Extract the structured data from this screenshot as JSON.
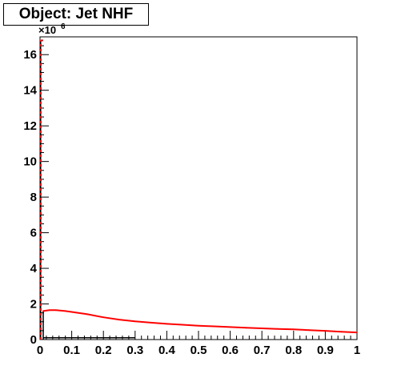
{
  "chart_data": {
    "type": "line",
    "title": "Object: Jet NHF",
    "y_multiplier": "×10",
    "y_exponent": "6",
    "xlim": [
      0,
      1
    ],
    "ylim": [
      0,
      17
    ],
    "x_ticks": [
      "0",
      "0.1",
      "0.2",
      "0.3",
      "0.4",
      "0.5",
      "0.6",
      "0.7",
      "0.8",
      "0.9",
      "1"
    ],
    "y_ticks": [
      "0",
      "2",
      "4",
      "6",
      "8",
      "10",
      "12",
      "14",
      "16"
    ],
    "grid": false,
    "legend": false,
    "series": [
      {
        "color": "#ff0000",
        "spike": {
          "x": 0.0,
          "y": 16.8
        },
        "x": [
          0.01,
          0.03,
          0.05,
          0.08,
          0.1,
          0.15,
          0.2,
          0.25,
          0.3,
          0.35,
          0.4,
          0.45,
          0.5,
          0.55,
          0.6,
          0.65,
          0.7,
          0.75,
          0.8,
          0.85,
          0.9,
          0.95,
          1.0
        ],
        "y": [
          1.6,
          1.65,
          1.65,
          1.6,
          1.55,
          1.42,
          1.25,
          1.12,
          1.02,
          0.95,
          0.88,
          0.83,
          0.78,
          0.74,
          0.7,
          0.66,
          0.63,
          0.6,
          0.57,
          0.53,
          0.49,
          0.44,
          0.4
        ]
      }
    ]
  }
}
